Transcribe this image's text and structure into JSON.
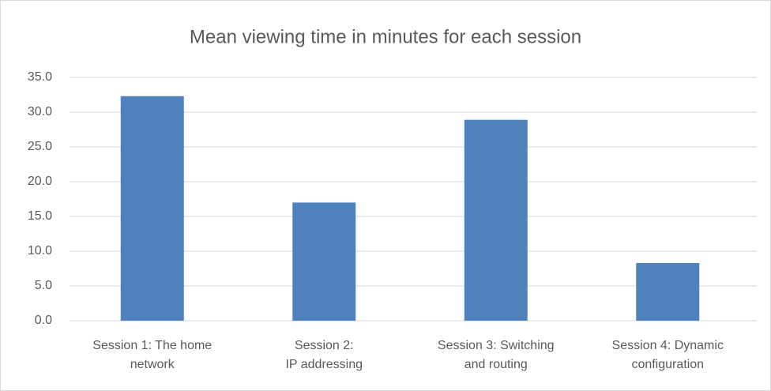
{
  "chart_data": {
    "type": "bar",
    "title": "Mean viewing time in minutes for each session",
    "categories": [
      "Session 1: The home\nnetwork",
      "Session 2:\nIP addressing",
      "Session 3: Switching\nand routing",
      "Session 4: Dynamic\nconfiguration"
    ],
    "values": [
      32.3,
      17.0,
      28.9,
      8.3
    ],
    "color": "#4f81bd",
    "ylim": [
      0,
      35
    ],
    "yticks": [
      {
        "value": 0,
        "label": "0.0"
      },
      {
        "value": 5,
        "label": "5.0"
      },
      {
        "value": 10,
        "label": "10.0"
      },
      {
        "value": 15,
        "label": "15.0"
      },
      {
        "value": 20,
        "label": "20.0"
      },
      {
        "value": 25,
        "label": "25.0"
      },
      {
        "value": 30,
        "label": "30.0"
      },
      {
        "value": 35,
        "label": "35.0"
      }
    ],
    "grid": true
  }
}
